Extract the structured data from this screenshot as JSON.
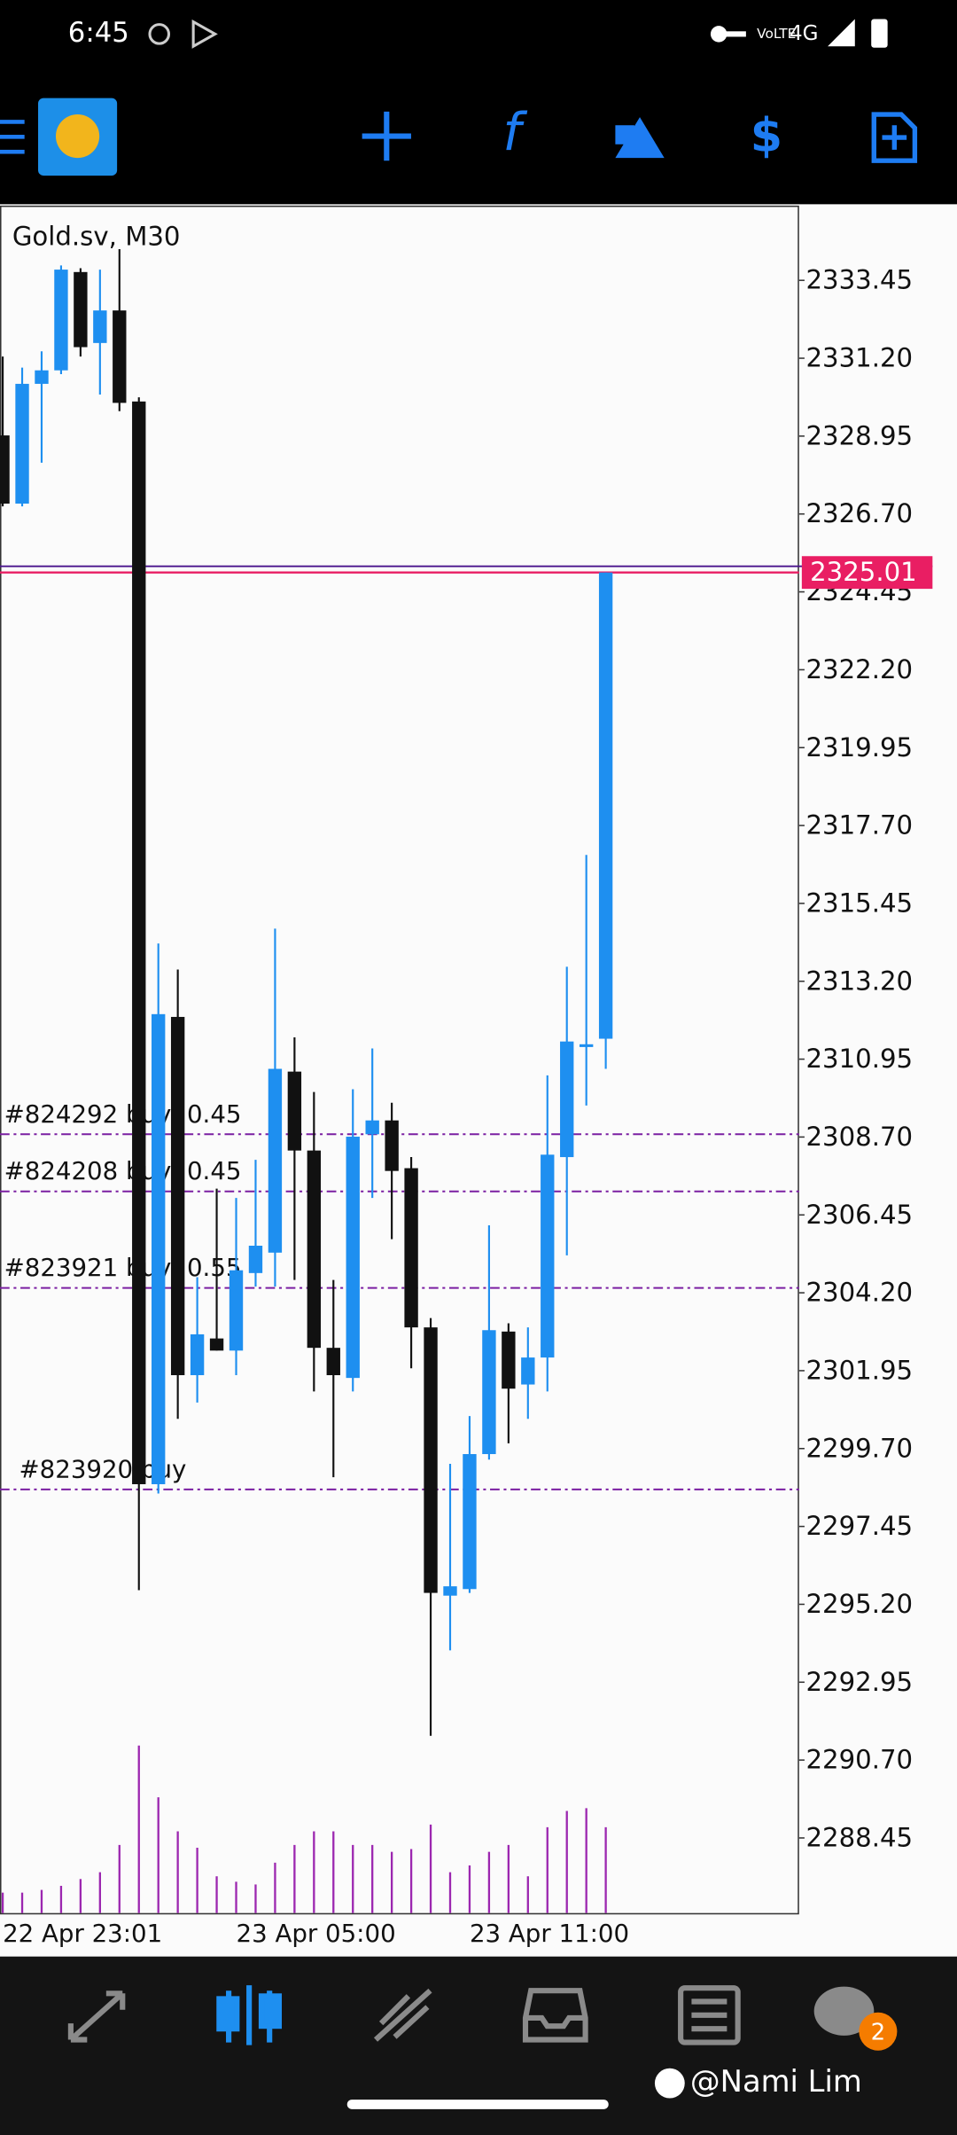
{
  "status_bar": {
    "time": "6:45",
    "network": "4G"
  },
  "chart_data": {
    "type": "candlestick",
    "title": "Gold.sv, M30",
    "categories": [
      "22 Apr 23:01",
      null,
      null,
      null,
      null,
      null,
      null,
      null,
      null,
      null,
      null,
      null,
      "23 Apr 05:00",
      null,
      null,
      null,
      null,
      null,
      null,
      null,
      null,
      null,
      null,
      null,
      "23 Apr 11:00",
      null,
      null,
      null,
      null,
      null,
      null,
      null
    ],
    "open": [
      2328.97,
      2327.0,
      2330.46,
      2330.85,
      2333.69,
      2331.64,
      2332.58,
      2329.95,
      2298.67,
      2312.17,
      2301.82,
      2302.88,
      2302.53,
      2304.77,
      2305.36,
      2310.59,
      2308.31,
      2302.61,
      2301.74,
      2308.78,
      2309.18,
      2307.8,
      2303.2,
      2295.45,
      2295.64,
      2299.54,
      2303.08,
      2301.55,
      2302.33,
      2308.12,
      2311.3,
      2311.54
    ],
    "high": [
      2331.25,
      2330.93,
      2331.4,
      2333.88,
      2333.8,
      2333.76,
      2334.35,
      2330.07,
      2314.29,
      2313.54,
      2304.65,
      2307.21,
      2306.94,
      2308.04,
      2314.72,
      2311.58,
      2310.0,
      2304.57,
      2310.08,
      2311.26,
      2309.69,
      2308.12,
      2303.47,
      2299.26,
      2300.64,
      2306.15,
      2303.32,
      2303.2,
      2310.48,
      2313.62,
      2316.85,
      2325.01
    ],
    "low": [
      2326.92,
      2326.92,
      2328.18,
      2330.74,
      2331.25,
      2330.15,
      2329.67,
      2295.61,
      2298.4,
      2300.56,
      2301.03,
      2302.53,
      2301.82,
      2304.38,
      2304.38,
      2304.57,
      2301.35,
      2298.87,
      2301.35,
      2306.94,
      2305.75,
      2302.02,
      2291.4,
      2293.87,
      2295.53,
      2299.38,
      2299.85,
      2300.56,
      2301.35,
      2305.28,
      2309.61,
      2310.67
    ],
    "close": [
      2327.0,
      2330.46,
      2330.85,
      2333.76,
      2331.52,
      2332.58,
      2329.91,
      2298.67,
      2312.25,
      2301.82,
      2303.0,
      2302.53,
      2304.85,
      2305.56,
      2310.67,
      2308.31,
      2302.61,
      2301.82,
      2308.71,
      2309.18,
      2307.72,
      2303.2,
      2295.53,
      2295.72,
      2299.54,
      2303.12,
      2301.43,
      2302.33,
      2308.19,
      2311.46,
      2311.38,
      2325.01
    ],
    "volume": [
      15,
      15,
      17,
      20,
      25,
      30,
      50,
      123,
      85,
      60,
      48,
      27,
      23,
      21,
      37,
      50,
      60,
      60,
      50,
      50,
      45,
      47,
      65,
      30,
      35,
      45,
      50,
      27,
      63,
      75,
      77,
      63
    ],
    "volume_ylim": [
      0,
      1253
    ],
    "up_color": "#1e8ff0",
    "down_color": "#111111",
    "volume_color": "#9c27b0",
    "ylim": [
      2286.28,
      2335.57
    ],
    "yticks": [
      2333.45,
      {
        "value": 2331.2,
        "label": "2331.20"
      },
      2328.95,
      {
        "value": 2326.7,
        "label": "2326.70"
      },
      2324.45,
      {
        "value": 2322.2,
        "label": "2322.20"
      },
      2319.95,
      {
        "value": 2317.7,
        "label": "2317.70"
      },
      2315.45,
      {
        "value": 2313.2,
        "label": "2313.20"
      },
      2310.95,
      {
        "value": 2308.7,
        "label": "2308.70"
      },
      2306.45,
      {
        "value": 2304.2,
        "label": "2304.20"
      },
      2301.95,
      {
        "value": 2299.7,
        "label": "2299.70"
      },
      2297.45,
      {
        "value": 2295.2,
        "label": "2295.20"
      },
      2292.95,
      {
        "value": 2290.7,
        "label": "2290.70"
      },
      2288.45
    ],
    "current_price": 2325.01,
    "ask_price": 2325.19,
    "orders": [
      {
        "label": "#824292 buy, 0.45",
        "price": 2308.78
      },
      {
        "label": "#824208 buy, 0.45",
        "price": 2307.13
      },
      {
        "label": "#823921 buy, 0.55",
        "price": 2304.34
      },
      {
        "label": "#823920 buy",
        "price": 2298.52
      }
    ]
  },
  "watermark": "@Nami Lim",
  "notification_badge": "2"
}
